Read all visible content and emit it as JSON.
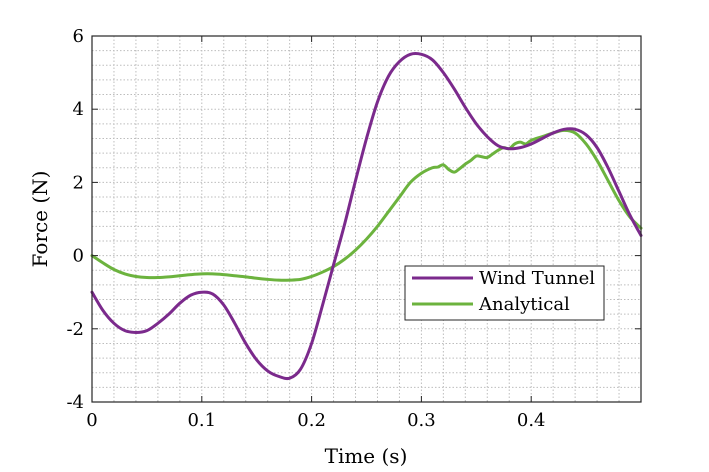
{
  "chart_data": {
    "type": "line",
    "title": "",
    "xlabel": "Time (s)",
    "ylabel": "Force (N)",
    "xlim": [
      0,
      0.5
    ],
    "ylim": [
      -4,
      6
    ],
    "xticks": [
      0,
      0.1,
      0.2,
      0.3,
      0.4
    ],
    "xtick_labels": [
      "0",
      "0.1",
      "0.2",
      "0.3",
      "0.4"
    ],
    "yticks": [
      -4,
      -2,
      0,
      2,
      4,
      6
    ],
    "ytick_labels": [
      "-4",
      "-2",
      "0",
      "2",
      "4",
      "6"
    ],
    "grid": true,
    "minor_grid": true,
    "legend_position": "lower-right",
    "series": [
      {
        "name": "Wind Tunnel",
        "color": "#7b2a8c",
        "x": [
          0,
          0.01,
          0.02,
          0.03,
          0.04,
          0.05,
          0.06,
          0.07,
          0.08,
          0.09,
          0.1,
          0.11,
          0.12,
          0.13,
          0.14,
          0.15,
          0.16,
          0.17,
          0.18,
          0.19,
          0.2,
          0.21,
          0.22,
          0.23,
          0.24,
          0.25,
          0.26,
          0.27,
          0.28,
          0.29,
          0.3,
          0.31,
          0.32,
          0.33,
          0.34,
          0.35,
          0.36,
          0.37,
          0.38,
          0.39,
          0.4,
          0.41,
          0.42,
          0.43,
          0.44,
          0.45,
          0.46,
          0.47,
          0.48,
          0.49,
          0.5
        ],
        "y": [
          -1.0,
          -1.5,
          -1.85,
          -2.05,
          -2.1,
          -2.05,
          -1.85,
          -1.6,
          -1.3,
          -1.08,
          -1.0,
          -1.05,
          -1.35,
          -1.85,
          -2.4,
          -2.85,
          -3.15,
          -3.3,
          -3.35,
          -3.1,
          -2.4,
          -1.35,
          -0.25,
          0.85,
          2.05,
          3.2,
          4.2,
          4.9,
          5.3,
          5.5,
          5.5,
          5.35,
          5.0,
          4.55,
          4.05,
          3.6,
          3.25,
          3.0,
          2.92,
          2.95,
          3.05,
          3.2,
          3.35,
          3.45,
          3.45,
          3.3,
          2.95,
          2.4,
          1.75,
          1.1,
          0.55
        ]
      },
      {
        "name": "Analytical",
        "color": "#6cb33e",
        "x": [
          0,
          0.01,
          0.02,
          0.03,
          0.04,
          0.05,
          0.06,
          0.07,
          0.08,
          0.09,
          0.1,
          0.11,
          0.12,
          0.13,
          0.14,
          0.15,
          0.16,
          0.17,
          0.18,
          0.19,
          0.2,
          0.21,
          0.22,
          0.23,
          0.24,
          0.25,
          0.26,
          0.27,
          0.28,
          0.29,
          0.3,
          0.31,
          0.315,
          0.32,
          0.325,
          0.33,
          0.335,
          0.34,
          0.345,
          0.35,
          0.355,
          0.36,
          0.365,
          0.37,
          0.375,
          0.38,
          0.385,
          0.39,
          0.395,
          0.4,
          0.41,
          0.42,
          0.43,
          0.44,
          0.45,
          0.46,
          0.47,
          0.48,
          0.49,
          0.5
        ],
        "y": [
          0.0,
          -0.2,
          -0.38,
          -0.5,
          -0.57,
          -0.6,
          -0.6,
          -0.58,
          -0.55,
          -0.52,
          -0.5,
          -0.5,
          -0.52,
          -0.55,
          -0.58,
          -0.62,
          -0.65,
          -0.67,
          -0.67,
          -0.65,
          -0.57,
          -0.45,
          -0.3,
          -0.1,
          0.15,
          0.45,
          0.8,
          1.2,
          1.6,
          2.0,
          2.25,
          2.4,
          2.42,
          2.48,
          2.35,
          2.28,
          2.38,
          2.5,
          2.6,
          2.72,
          2.7,
          2.68,
          2.78,
          2.88,
          2.95,
          2.92,
          3.05,
          3.1,
          3.05,
          3.15,
          3.25,
          3.35,
          3.42,
          3.35,
          3.05,
          2.6,
          2.05,
          1.5,
          1.05,
          0.75
        ]
      }
    ]
  }
}
